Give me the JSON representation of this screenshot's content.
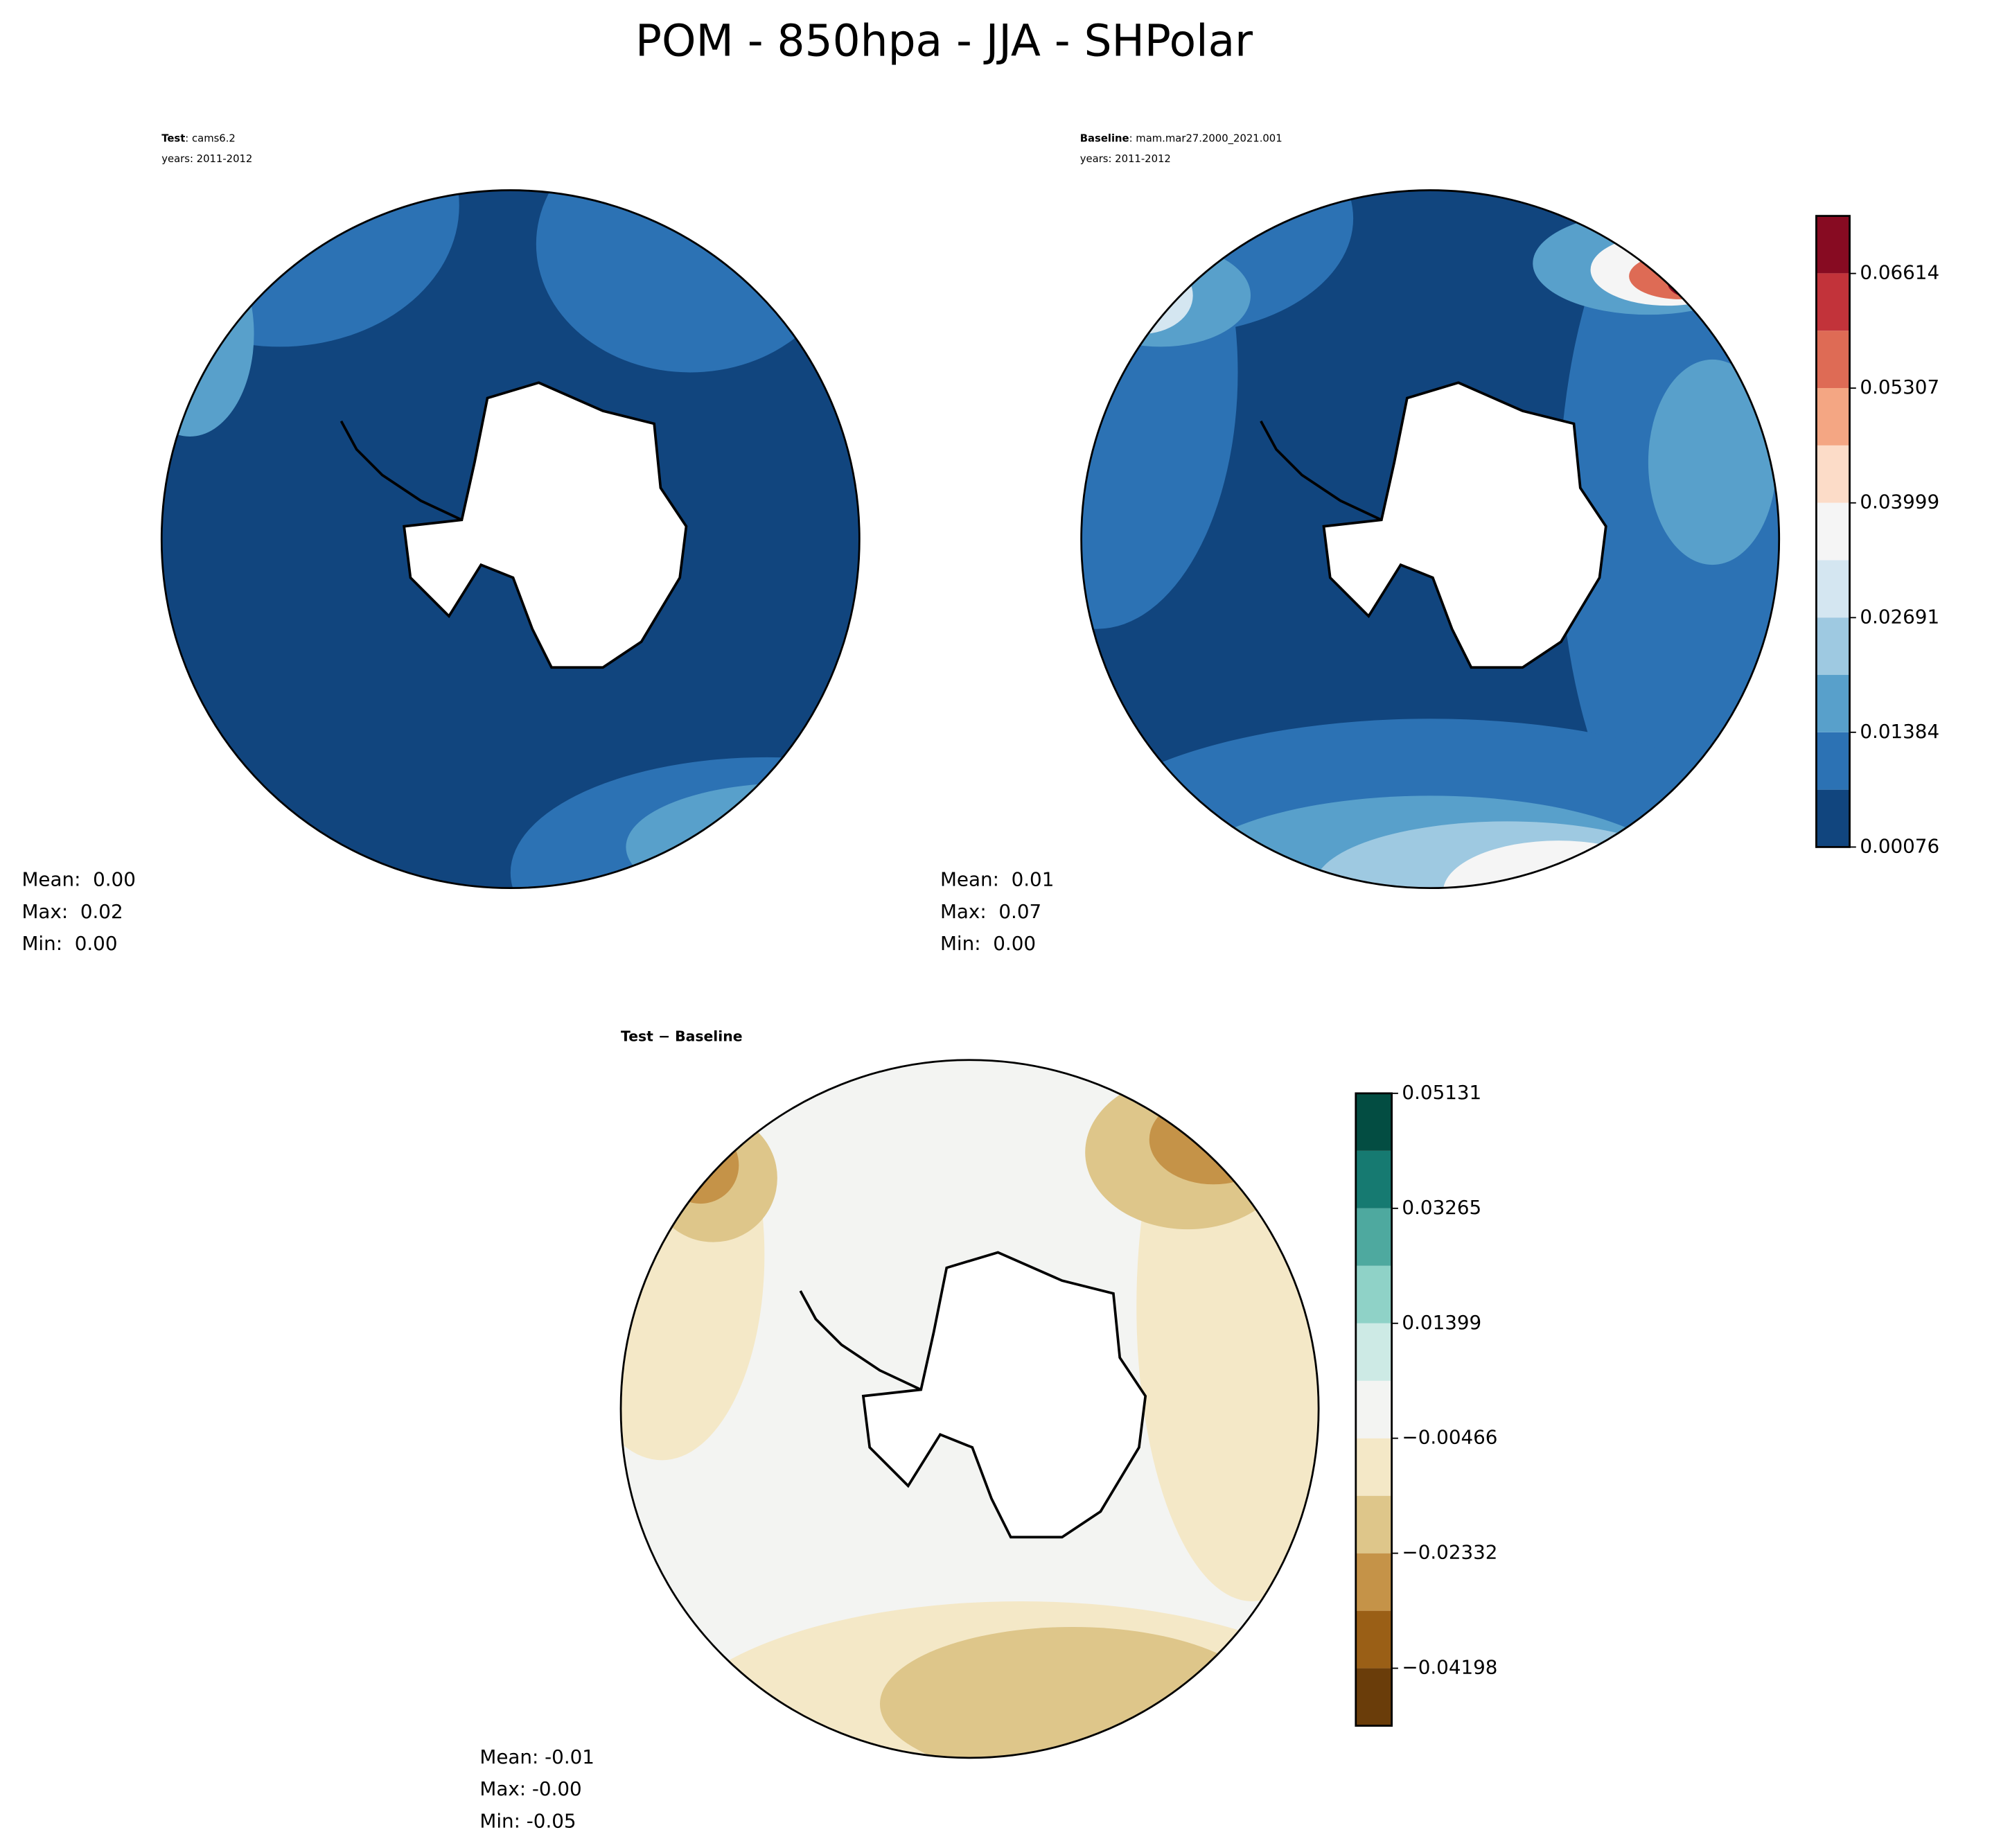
{
  "title": "POM - 850hpa - JJA - SHPolar",
  "chart_data": [
    {
      "type": "contour",
      "label": "Test",
      "name": ": cams6.2",
      "years": "years: 2011-2012",
      "stats": [
        "Mean:  0.00",
        "Max:  0.02",
        "Min:  0.00"
      ]
    },
    {
      "type": "contour",
      "label": "Baseline",
      "name": ": mam.mar27.2000_2021.001",
      "years": "years: 2011-2012",
      "stats": [
        "Mean:  0.01",
        "Max:  0.07",
        "Min:  0.00"
      ],
      "colorbar": {
        "ylim": [
          0.00076,
          0.0727
        ],
        "yticks": [
          0.00076,
          0.01384,
          0.02691,
          0.03999,
          0.05307,
          0.06614
        ],
        "colors": [
          "#11457e",
          "#2c72b4",
          "#58a0cb",
          "#9ec9e1",
          "#d4e6f1",
          "#f5f5f5",
          "#fcdcc8",
          "#f4a683",
          "#de6b55",
          "#c2333a",
          "#870b22"
        ]
      }
    },
    {
      "type": "contour",
      "title": "Test − Baseline",
      "stats": [
        "Mean: -0.01",
        "Max: -0.00",
        "Min: -0.05"
      ],
      "colorbar": {
        "ylim": [
          -0.05131,
          0.05131
        ],
        "yticks": [
          {
            "value": -0.04198,
            "label": "−0.04198"
          },
          {
            "value": -0.02332,
            "label": "−0.02332"
          },
          {
            "value": -0.00466,
            "label": "−0.00466"
          },
          0.01399,
          0.03265,
          0.05131
        ],
        "colors": [
          "#6a3d0a",
          "#9a5f16",
          "#c59348",
          "#dec68a",
          "#f4e8c7",
          "#f3f4f2",
          "#cdeae5",
          "#8fd2c7",
          "#4ea99f",
          "#167a71",
          "#034d42"
        ]
      }
    }
  ]
}
